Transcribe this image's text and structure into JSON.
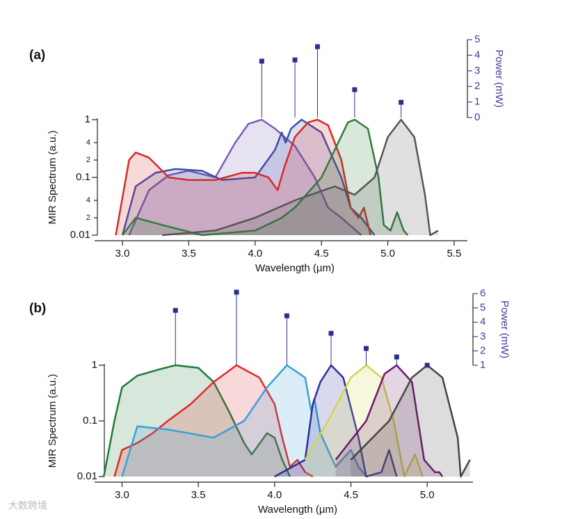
{
  "chart_data": [
    {
      "type": "area",
      "label": "(a)",
      "x_label": "Wavelength (µm)",
      "y_label": "MIR Spectrum (a.u.)",
      "y2_label": "Power (mW)",
      "log_y": true,
      "xlim": [
        2.79,
        5.6
      ],
      "ylim": [
        0.01,
        1
      ],
      "y2lim": [
        0,
        5
      ],
      "xticks": [
        {
          "value": 3,
          "label": "3.0"
        },
        3.5,
        {
          "value": 4,
          "label": "4.0"
        },
        4.5,
        {
          "value": 5,
          "label": "5.0"
        },
        5.5
      ],
      "yticks": [
        0.01,
        {
          "value": 0.02,
          "label": "2"
        },
        {
          "value": 0.04,
          "label": "4"
        },
        0.1,
        {
          "value": 0.2,
          "label": "2"
        },
        {
          "value": 0.4,
          "label": "4"
        },
        1
      ],
      "y2ticks": [
        0,
        1,
        2,
        3,
        4,
        5
      ],
      "series": [
        {
          "color": "#7b5cb8",
          "x": [
            3.05,
            3.2,
            3.35,
            3.5,
            3.7,
            3.85,
            3.95,
            4.05,
            4.15,
            4.3,
            4.45,
            4.55,
            4.65,
            4.8
          ],
          "values": [
            0.01,
            0.06,
            0.11,
            0.13,
            0.1,
            0.4,
            0.85,
            1,
            0.7,
            0.35,
            0.1,
            0.03,
            0.02,
            0.01
          ]
        },
        {
          "color": "#3b4fa8",
          "x": [
            3.0,
            3.1,
            3.25,
            3.4,
            3.6,
            3.75,
            4.0,
            4.15,
            4.2,
            4.23,
            4.27,
            4.35,
            4.5,
            4.65,
            4.72,
            4.8,
            4.9
          ],
          "values": [
            0.01,
            0.07,
            0.12,
            0.14,
            0.13,
            0.09,
            0.1,
            0.3,
            0.6,
            0.4,
            0.7,
            1,
            0.6,
            0.1,
            0.03,
            0.02,
            0.01
          ]
        },
        {
          "color": "#d42a2a",
          "x": [
            2.95,
            3.05,
            3.1,
            3.2,
            3.35,
            3.5,
            3.7,
            3.9,
            4.0,
            4.1,
            4.17,
            4.22,
            4.3,
            4.4,
            4.47,
            4.55,
            4.65,
            4.72,
            4.78,
            4.82,
            4.87
          ],
          "values": [
            0.01,
            0.2,
            0.27,
            0.22,
            0.1,
            0.09,
            0.09,
            0.12,
            0.12,
            0.1,
            0.06,
            0.15,
            0.5,
            0.9,
            1,
            0.8,
            0.2,
            0.03,
            0.02,
            0.03,
            0.01
          ]
        },
        {
          "color": "#2e7d3a",
          "x": [
            3.0,
            3.1,
            3.3,
            3.6,
            4.0,
            4.2,
            4.3,
            4.5,
            4.6,
            4.7,
            4.75,
            4.85,
            4.93,
            4.97,
            5.02,
            5.07,
            5.12,
            5.15
          ],
          "values": [
            0.01,
            0.02,
            0.015,
            0.01,
            0.012,
            0.02,
            0.03,
            0.1,
            0.3,
            0.9,
            1,
            0.7,
            0.1,
            0.015,
            0.012,
            0.025,
            0.012,
            0.01
          ]
        },
        {
          "color": "#555555",
          "x": [
            3.3,
            3.7,
            4.0,
            4.3,
            4.6,
            4.75,
            4.9,
            5.0,
            5.1,
            5.2,
            5.28,
            5.32,
            5.38
          ],
          "values": [
            0.01,
            0.012,
            0.02,
            0.04,
            0.07,
            0.05,
            0.1,
            0.5,
            1,
            0.5,
            0.05,
            0.01,
            0.012
          ]
        },
        {
          "axis": "y2",
          "color": "#2a2f8f",
          "x": [
            4.05,
            4.3,
            4.47,
            4.75,
            5.1
          ],
          "values": [
            3.62,
            3.7,
            4.55,
            1.79,
            0.98
          ]
        }
      ]
    },
    {
      "type": "area",
      "label": "(b)",
      "x_label": "Wavelength (µm)",
      "y_label": "MIR Spectrum (a.u.)",
      "y2_label": "Power (mW)",
      "log_y": true,
      "xlim": [
        2.82,
        5.3
      ],
      "ylim": [
        0.01,
        1
      ],
      "y2lim": [
        1,
        6
      ],
      "xticks": [
        {
          "value": 3,
          "label": "3.0"
        },
        3.5,
        {
          "value": 4,
          "label": "4.0"
        },
        4.5,
        {
          "value": 5,
          "label": "5.0"
        }
      ],
      "yticks": [
        0.01,
        0.1,
        1
      ],
      "y2ticks": [
        1,
        2,
        3,
        4,
        5,
        6
      ],
      "series": [
        {
          "color": "#1f7a3a",
          "x": [
            2.88,
            2.95,
            3.0,
            3.1,
            3.25,
            3.35,
            3.5,
            3.6,
            3.7,
            3.8,
            3.85,
            3.95,
            4.0,
            4.05,
            4.1
          ],
          "values": [
            0.01,
            0.1,
            0.4,
            0.65,
            0.85,
            1,
            0.9,
            0.5,
            0.15,
            0.04,
            0.025,
            0.06,
            0.05,
            0.02,
            0.01
          ]
        },
        {
          "color": "#e0282a",
          "x": [
            2.95,
            3.0,
            3.1,
            3.2,
            3.3,
            3.45,
            3.6,
            3.75,
            3.9,
            4.0,
            4.05,
            4.1,
            4.15,
            4.2,
            4.25
          ],
          "values": [
            0.01,
            0.03,
            0.04,
            0.06,
            0.1,
            0.2,
            0.5,
            1,
            0.6,
            0.2,
            0.05,
            0.015,
            0.02,
            0.012,
            0.01
          ]
        },
        {
          "color": "#3a9fd6",
          "x": [
            3.0,
            3.1,
            3.3,
            3.6,
            3.8,
            3.95,
            4.08,
            4.2,
            4.24,
            4.26,
            4.3,
            4.4,
            4.5,
            4.55,
            4.6
          ],
          "values": [
            0.01,
            0.08,
            0.07,
            0.05,
            0.1,
            0.4,
            1,
            0.6,
            0.15,
            0.25,
            0.06,
            0.015,
            0.03,
            0.015,
            0.01
          ]
        },
        {
          "color": "#2a2f9a",
          "x": [
            4.0,
            4.2,
            4.25,
            4.3,
            4.37,
            4.45,
            4.55,
            4.6,
            4.7,
            4.75,
            4.8
          ],
          "values": [
            0.01,
            0.02,
            0.2,
            0.5,
            1,
            0.6,
            0.05,
            0.01,
            0.012,
            0.03,
            0.01
          ]
        },
        {
          "color": "#d4d44a",
          "x": [
            4.2,
            4.35,
            4.5,
            4.6,
            4.7,
            4.78,
            4.85,
            4.92,
            4.97
          ],
          "values": [
            0.02,
            0.1,
            0.6,
            1,
            0.6,
            0.1,
            0.01,
            0.025,
            0.01
          ]
        },
        {
          "color": "#6a1a6a",
          "x": [
            4.4,
            4.6,
            4.72,
            4.8,
            4.9,
            4.98,
            5.05,
            5.08,
            5.1
          ],
          "values": [
            0.02,
            0.1,
            0.7,
            1,
            0.5,
            0.02,
            0.012,
            0.012,
            0.01
          ]
        },
        {
          "color": "#444444",
          "x": [
            4.5,
            4.75,
            4.9,
            5.0,
            5.1,
            5.2,
            5.22,
            5.28
          ],
          "values": [
            0.02,
            0.1,
            0.6,
            1,
            0.6,
            0.05,
            0.01,
            0.02
          ]
        },
        {
          "axis": "y2",
          "color": "#2a2f8f",
          "x": [
            3.35,
            3.75,
            4.08,
            4.37,
            4.6,
            4.8,
            5.0
          ],
          "values": [
            4.83,
            6.1,
            4.45,
            3.23,
            2.17,
            1.58,
            1.0
          ]
        }
      ]
    }
  ],
  "watermark": "大数跨境"
}
